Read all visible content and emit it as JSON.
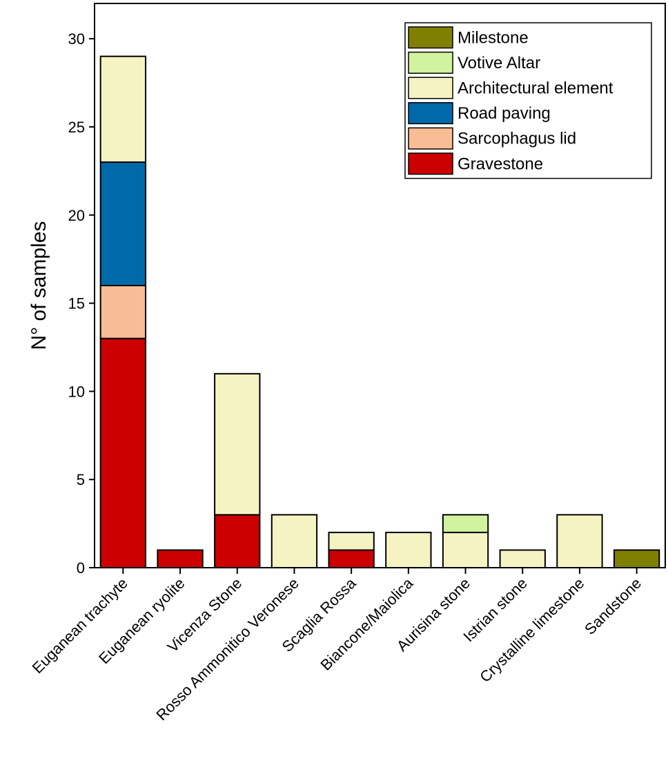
{
  "chart_data": {
    "type": "bar",
    "stacked": true,
    "title": "",
    "xlabel": "",
    "ylabel": "N° of samples",
    "ylim": [
      0,
      32
    ],
    "yticks": [
      0,
      5,
      10,
      15,
      20,
      25,
      30
    ],
    "grid": false,
    "legend_position": "top-right",
    "categories": [
      "Euganean trachyte",
      "Euganean ryolite",
      "Vicenza Stone",
      "Rosso Ammonitico Veronese",
      "Scaglia Rossa",
      "Biancone/Maiolica",
      "Aurisina stone",
      "Istrian stone",
      "Crystalline limestone",
      "Sandstone"
    ],
    "series": [
      {
        "name": "Gravestone",
        "color": "#cc0000",
        "values": [
          13,
          1,
          3,
          0,
          1,
          0,
          0,
          0,
          0,
          0
        ]
      },
      {
        "name": "Sarcophagus lid",
        "color": "#f8bd95",
        "values": [
          3,
          0,
          0,
          0,
          0,
          0,
          0,
          0,
          0,
          0
        ]
      },
      {
        "name": "Road paving",
        "color": "#0069aa",
        "values": [
          7,
          0,
          0,
          0,
          0,
          0,
          0,
          0,
          0,
          0
        ]
      },
      {
        "name": "Architectural element",
        "color": "#f5f3c2",
        "values": [
          6,
          0,
          8,
          3,
          1,
          2,
          2,
          1,
          3,
          0
        ]
      },
      {
        "name": "Votive Altar",
        "color": "#d1f29e",
        "values": [
          0,
          0,
          0,
          0,
          0,
          0,
          1,
          0,
          0,
          0
        ]
      },
      {
        "name": "Milestone",
        "color": "#808000",
        "values": [
          0,
          0,
          0,
          0,
          0,
          0,
          0,
          0,
          0,
          1
        ]
      }
    ],
    "legend_order": [
      "Milestone",
      "Votive Altar",
      "Architectural element",
      "Road paving",
      "Sarcophagus lid",
      "Gravestone"
    ]
  }
}
